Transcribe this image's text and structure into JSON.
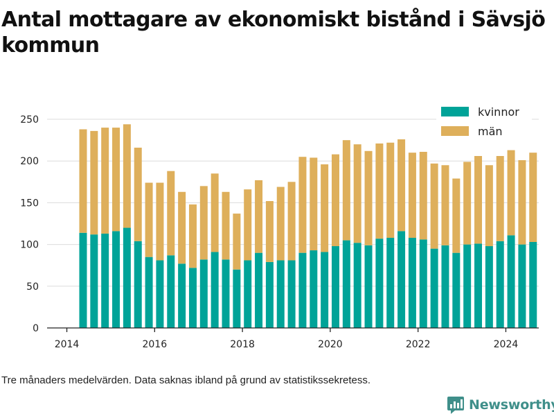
{
  "title": "Antal mottagare av ekonomiskt bistånd i Sävsjö kommun",
  "footnote": "Tre månaders medelvärden. Data saknas ibland på grund av statistikssekretess.",
  "brand": {
    "name": "Newsworthy",
    "icon": "newsworthy-logo-icon",
    "color": "#3f8f8a"
  },
  "chart_data": {
    "type": "bar",
    "stacked": true,
    "title": "Antal mottagare av ekonomiskt bistånd i Sävsjö kommun",
    "xlabel": "",
    "ylabel": "",
    "ylim": [
      0,
      260
    ],
    "yticks": [
      0,
      50,
      100,
      150,
      200,
      250
    ],
    "xlim": [
      2013.55,
      2024.75
    ],
    "xticks": [
      2014,
      2016,
      2018,
      2020,
      2022,
      2024
    ],
    "grid": true,
    "legend_position": "top-right",
    "x": [
      2014.37,
      2014.62,
      2014.87,
      2015.12,
      2015.37,
      2015.62,
      2015.87,
      2016.12,
      2016.37,
      2016.62,
      2016.87,
      2017.12,
      2017.37,
      2017.62,
      2017.87,
      2018.12,
      2018.37,
      2018.62,
      2018.87,
      2019.12,
      2019.37,
      2019.62,
      2019.87,
      2020.12,
      2020.37,
      2020.62,
      2020.87,
      2021.12,
      2021.37,
      2021.62,
      2021.87,
      2022.12,
      2022.37,
      2022.62,
      2022.87,
      2023.12,
      2023.37,
      2023.62,
      2023.87,
      2024.12,
      2024.37,
      2024.62
    ],
    "series": [
      {
        "name": "kvinnor",
        "color": "#00a398",
        "values": [
          114,
          112,
          113,
          116,
          120,
          104,
          85,
          81,
          87,
          77,
          72,
          82,
          91,
          82,
          70,
          81,
          90,
          79,
          81,
          81,
          90,
          93,
          91,
          98,
          105,
          102,
          99,
          107,
          108,
          116,
          108,
          106,
          95,
          99,
          90,
          100,
          101,
          98,
          104,
          111,
          100,
          103
        ]
      },
      {
        "name": "män",
        "color": "#deaf5b",
        "values": [
          124,
          124,
          127,
          124,
          124,
          112,
          89,
          93,
          101,
          86,
          76,
          88,
          94,
          81,
          67,
          85,
          87,
          73,
          88,
          94,
          115,
          111,
          105,
          110,
          120,
          118,
          113,
          114,
          114,
          110,
          102,
          105,
          102,
          96,
          89,
          99,
          105,
          97,
          102,
          102,
          101,
          107
        ]
      }
    ]
  }
}
